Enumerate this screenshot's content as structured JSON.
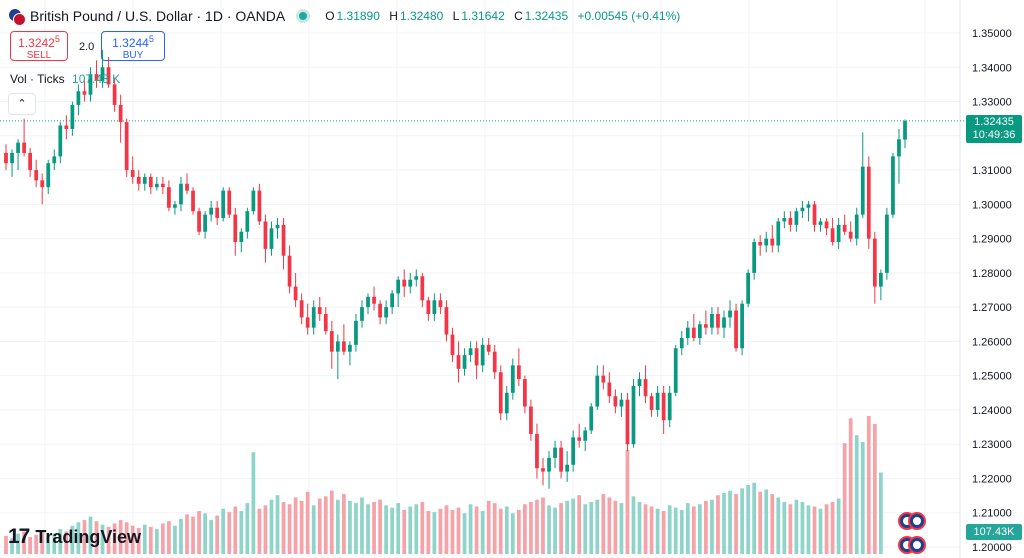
{
  "header": {
    "title": "British Pound / U.S. Dollar · 1D · OANDA",
    "open_label": "O",
    "open": "1.31890",
    "high_label": "H",
    "high": "1.32480",
    "low_label": "L",
    "low": "1.31642",
    "close_label": "C",
    "close": "1.32435",
    "change": "+0.00545 (+0.41%)"
  },
  "trade": {
    "sell_price": "1.3242",
    "sell_price_sup": "5",
    "sell_label": "SELL",
    "spread": "2.0",
    "buy_price": "1.3244",
    "buy_price_sup": "5",
    "buy_label": "BUY"
  },
  "volume_legend": {
    "label": "Vol · Ticks",
    "value": "107.43 K"
  },
  "badges": {
    "last_price": "1.32435",
    "countdown": "10:49:36",
    "last_volume": "107.43K"
  },
  "logo": {
    "text": "TradingView"
  },
  "icons": {
    "collapse": "chevron-up-icon",
    "live": "live-dot-icon",
    "flag": "currency-pair-flag-icon"
  },
  "colors": {
    "up": "#089981",
    "down": "#f23645",
    "up_volume": "#8fd4c9",
    "down_volume": "#f5a3a8",
    "buy": "#2962ff"
  },
  "chart_data": {
    "type": "candlestick",
    "symbol": "GBPUSD",
    "timeframe": "1D",
    "ylim": [
      1.2,
      1.35
    ],
    "yticks": [
      "1.35000",
      "1.34000",
      "1.33000",
      "1.32000",
      "1.31000",
      "1.30000",
      "1.29000",
      "1.28000",
      "1.27000",
      "1.26000",
      "1.25000",
      "1.24000",
      "1.23000",
      "1.22000",
      "1.21000",
      "1.20000"
    ],
    "last_price": 1.32435,
    "grid": true,
    "candles": [
      [
        1.315,
        1.3175,
        1.31,
        1.312
      ],
      [
        1.312,
        1.316,
        1.308,
        1.315
      ],
      [
        1.315,
        1.319,
        1.31,
        1.318
      ],
      [
        1.318,
        1.325,
        1.314,
        1.315
      ],
      [
        1.315,
        1.3165,
        1.308,
        1.31
      ],
      [
        1.31,
        1.313,
        1.305,
        1.307
      ],
      [
        1.307,
        1.309,
        1.3,
        1.305
      ],
      [
        1.305,
        1.313,
        1.303,
        1.312
      ],
      [
        1.312,
        1.316,
        1.31,
        1.314
      ],
      [
        1.314,
        1.324,
        1.312,
        1.323
      ],
      [
        1.323,
        1.326,
        1.319,
        1.322
      ],
      [
        1.322,
        1.33,
        1.32,
        1.329
      ],
      [
        1.329,
        1.335,
        1.326,
        1.333
      ],
      [
        1.333,
        1.337,
        1.33,
        1.332
      ],
      [
        1.332,
        1.34,
        1.33,
        1.338
      ],
      [
        1.338,
        1.342,
        1.334,
        1.336
      ],
      [
        1.336,
        1.345,
        1.334,
        1.34
      ],
      [
        1.34,
        1.343,
        1.334,
        1.335
      ],
      [
        1.335,
        1.337,
        1.327,
        1.329
      ],
      [
        1.329,
        1.332,
        1.318,
        1.324
      ],
      [
        1.324,
        1.325,
        1.308,
        1.31
      ],
      [
        1.31,
        1.314,
        1.306,
        1.308
      ],
      [
        1.308,
        1.31,
        1.304,
        1.306
      ],
      [
        1.306,
        1.309,
        1.304,
        1.308
      ],
      [
        1.308,
        1.309,
        1.303,
        1.305
      ],
      [
        1.305,
        1.308,
        1.304,
        1.306
      ],
      [
        1.306,
        1.308,
        1.303,
        1.305
      ],
      [
        1.305,
        1.307,
        1.298,
        1.299
      ],
      [
        1.299,
        1.301,
        1.297,
        1.3
      ],
      [
        1.3,
        1.308,
        1.298,
        1.306
      ],
      [
        1.306,
        1.309,
        1.303,
        1.304
      ],
      [
        1.304,
        1.305,
        1.297,
        1.298
      ],
      [
        1.298,
        1.299,
        1.291,
        1.292
      ],
      [
        1.292,
        1.298,
        1.29,
        1.297
      ],
      [
        1.297,
        1.301,
        1.295,
        1.299
      ],
      [
        1.299,
        1.301,
        1.294,
        1.296
      ],
      [
        1.296,
        1.305,
        1.295,
        1.304
      ],
      [
        1.304,
        1.305,
        1.296,
        1.297
      ],
      [
        1.297,
        1.299,
        1.285,
        1.289
      ],
      [
        1.289,
        1.293,
        1.286,
        1.292
      ],
      [
        1.292,
        1.299,
        1.29,
        1.298
      ],
      [
        1.298,
        1.305,
        1.297,
        1.304
      ],
      [
        1.304,
        1.306,
        1.294,
        1.295
      ],
      [
        1.295,
        1.297,
        1.283,
        1.287
      ],
      [
        1.287,
        1.295,
        1.285,
        1.293
      ],
      [
        1.293,
        1.296,
        1.29,
        1.294
      ],
      [
        1.294,
        1.296,
        1.281,
        1.285
      ],
      [
        1.285,
        1.288,
        1.274,
        1.276
      ],
      [
        1.276,
        1.28,
        1.27,
        1.272
      ],
      [
        1.272,
        1.274,
        1.265,
        1.267
      ],
      [
        1.267,
        1.271,
        1.262,
        1.264
      ],
      [
        1.264,
        1.272,
        1.262,
        1.27
      ],
      [
        1.27,
        1.273,
        1.266,
        1.268
      ],
      [
        1.268,
        1.27,
        1.262,
        1.263
      ],
      [
        1.263,
        1.266,
        1.252,
        1.257
      ],
      [
        1.257,
        1.262,
        1.249,
        1.26
      ],
      [
        1.26,
        1.265,
        1.256,
        1.257
      ],
      [
        1.257,
        1.26,
        1.253,
        1.259
      ],
      [
        1.259,
        1.268,
        1.257,
        1.266
      ],
      [
        1.266,
        1.272,
        1.264,
        1.27
      ],
      [
        1.27,
        1.274,
        1.268,
        1.273
      ],
      [
        1.273,
        1.276,
        1.269,
        1.271
      ],
      [
        1.271,
        1.272,
        1.265,
        1.267
      ],
      [
        1.267,
        1.272,
        1.265,
        1.27
      ],
      [
        1.27,
        1.275,
        1.268,
        1.274
      ],
      [
        1.274,
        1.279,
        1.27,
        1.278
      ],
      [
        1.278,
        1.281,
        1.273,
        1.276
      ],
      [
        1.276,
        1.28,
        1.274,
        1.278
      ],
      [
        1.278,
        1.281,
        1.276,
        1.279
      ],
      [
        1.279,
        1.28,
        1.27,
        1.272
      ],
      [
        1.272,
        1.273,
        1.266,
        1.268
      ],
      [
        1.268,
        1.274,
        1.266,
        1.272
      ],
      [
        1.272,
        1.274,
        1.268,
        1.27
      ],
      [
        1.27,
        1.272,
        1.26,
        1.262
      ],
      [
        1.262,
        1.264,
        1.254,
        1.256
      ],
      [
        1.256,
        1.26,
        1.248,
        1.252
      ],
      [
        1.252,
        1.258,
        1.25,
        1.256
      ],
      [
        1.256,
        1.26,
        1.254,
        1.258
      ],
      [
        1.258,
        1.26,
        1.249,
        1.253
      ],
      [
        1.253,
        1.261,
        1.251,
        1.259
      ],
      [
        1.259,
        1.261,
        1.256,
        1.257
      ],
      [
        1.257,
        1.259,
        1.249,
        1.251
      ],
      [
        1.251,
        1.253,
        1.237,
        1.239
      ],
      [
        1.239,
        1.247,
        1.237,
        1.245
      ],
      [
        1.245,
        1.255,
        1.243,
        1.253
      ],
      [
        1.253,
        1.258,
        1.247,
        1.249
      ],
      [
        1.249,
        1.25,
        1.239,
        1.241
      ],
      [
        1.241,
        1.243,
        1.231,
        1.233
      ],
      [
        1.233,
        1.236,
        1.22,
        1.223
      ],
      [
        1.223,
        1.226,
        1.218,
        1.222
      ],
      [
        1.222,
        1.228,
        1.217,
        1.226
      ],
      [
        1.226,
        1.231,
        1.223,
        1.229
      ],
      [
        1.229,
        1.231,
        1.22,
        1.222
      ],
      [
        1.222,
        1.228,
        1.219,
        1.224
      ],
      [
        1.224,
        1.234,
        1.222,
        1.232
      ],
      [
        1.232,
        1.236,
        1.229,
        1.231
      ],
      [
        1.231,
        1.235,
        1.228,
        1.234
      ],
      [
        1.234,
        1.242,
        1.233,
        1.241
      ],
      [
        1.241,
        1.253,
        1.24,
        1.25
      ],
      [
        1.25,
        1.253,
        1.246,
        1.248
      ],
      [
        1.248,
        1.251,
        1.242,
        1.244
      ],
      [
        1.244,
        1.246,
        1.239,
        1.241
      ],
      [
        1.241,
        1.245,
        1.238,
        1.243
      ],
      [
        1.243,
        1.245,
        1.228,
        1.23
      ],
      [
        1.23,
        1.249,
        1.229,
        1.247
      ],
      [
        1.247,
        1.251,
        1.244,
        1.249
      ],
      [
        1.249,
        1.253,
        1.242,
        1.244
      ],
      [
        1.244,
        1.245,
        1.238,
        1.24
      ],
      [
        1.24,
        1.247,
        1.238,
        1.245
      ],
      [
        1.245,
        1.247,
        1.233,
        1.237
      ],
      [
        1.237,
        1.247,
        1.235,
        1.245
      ],
      [
        1.245,
        1.259,
        1.244,
        1.258
      ],
      [
        1.258,
        1.263,
        1.256,
        1.261
      ],
      [
        1.261,
        1.266,
        1.259,
        1.264
      ],
      [
        1.264,
        1.268,
        1.26,
        1.261
      ],
      [
        1.261,
        1.266,
        1.259,
        1.265
      ],
      [
        1.265,
        1.269,
        1.262,
        1.264
      ],
      [
        1.264,
        1.27,
        1.262,
        1.268
      ],
      [
        1.268,
        1.27,
        1.262,
        1.264
      ],
      [
        1.264,
        1.269,
        1.261,
        1.267
      ],
      [
        1.267,
        1.272,
        1.264,
        1.269
      ],
      [
        1.269,
        1.271,
        1.257,
        1.258
      ],
      [
        1.258,
        1.272,
        1.256,
        1.271
      ],
      [
        1.271,
        1.281,
        1.27,
        1.28
      ],
      [
        1.28,
        1.29,
        1.278,
        1.289
      ],
      [
        1.289,
        1.291,
        1.285,
        1.288
      ],
      [
        1.288,
        1.292,
        1.286,
        1.29
      ],
      [
        1.29,
        1.294,
        1.286,
        1.288
      ],
      [
        1.288,
        1.296,
        1.286,
        1.295
      ],
      [
        1.295,
        1.298,
        1.293,
        1.296
      ],
      [
        1.296,
        1.298,
        1.292,
        1.294
      ],
      [
        1.294,
        1.299,
        1.292,
        1.298
      ],
      [
        1.298,
        1.301,
        1.296,
        1.299
      ],
      [
        1.299,
        1.301,
        1.295,
        1.3
      ],
      [
        1.3,
        1.301,
        1.292,
        1.294
      ],
      [
        1.294,
        1.296,
        1.292,
        1.295
      ],
      [
        1.295,
        1.296,
        1.291,
        1.293
      ],
      [
        1.293,
        1.296,
        1.288,
        1.289
      ],
      [
        1.289,
        1.296,
        1.287,
        1.294
      ],
      [
        1.294,
        1.297,
        1.291,
        1.292
      ],
      [
        1.292,
        1.295,
        1.289,
        1.29
      ],
      [
        1.29,
        1.299,
        1.288,
        1.297
      ],
      [
        1.297,
        1.321,
        1.296,
        1.311
      ],
      [
        1.311,
        1.314,
        1.287,
        1.29
      ],
      [
        1.29,
        1.292,
        1.271,
        1.276
      ],
      [
        1.276,
        1.281,
        1.272,
        1.28
      ],
      [
        1.28,
        1.299,
        1.278,
        1.297
      ],
      [
        1.297,
        1.315,
        1.296,
        1.314
      ],
      [
        1.314,
        1.322,
        1.306,
        1.319
      ],
      [
        1.3189,
        1.3248,
        1.3164,
        1.3243
      ]
    ],
    "volumes": [
      16,
      14,
      18,
      20,
      15,
      17,
      19,
      16,
      18,
      22,
      20,
      25,
      28,
      30,
      33,
      29,
      26,
      24,
      27,
      30,
      28,
      25,
      23,
      26,
      24,
      22,
      27,
      29,
      25,
      31,
      35,
      33,
      38,
      36,
      30,
      34,
      40,
      37,
      42,
      38,
      45,
      90,
      40,
      43,
      48,
      52,
      46,
      44,
      50,
      47,
      55,
      43,
      49,
      51,
      56,
      48,
      53,
      47,
      45,
      50,
      44,
      46,
      48,
      43,
      41,
      45,
      39,
      42,
      44,
      46,
      38,
      37,
      40,
      43,
      39,
      41,
      36,
      44,
      42,
      38,
      47,
      45,
      40,
      42,
      36,
      39,
      44,
      46,
      48,
      50,
      43,
      41,
      45,
      47,
      49,
      52,
      44,
      46,
      48,
      53,
      50,
      47,
      45,
      92,
      51,
      46,
      44,
      42,
      40,
      38,
      43,
      41,
      39,
      45,
      42,
      44,
      47,
      48,
      52,
      54,
      56,
      53,
      58,
      61,
      63,
      55,
      57,
      53,
      50,
      46,
      44,
      48,
      46,
      43,
      42,
      40,
      44,
      46,
      49,
      98,
      120,
      105,
      99,
      122,
      115,
      72
    ]
  }
}
